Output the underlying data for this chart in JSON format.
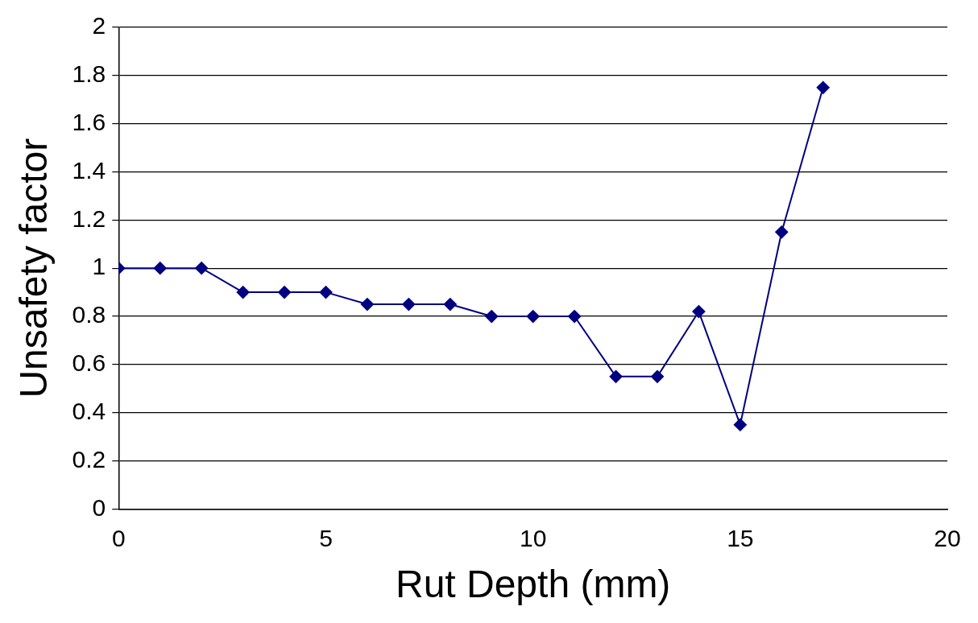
{
  "chart_data": {
    "type": "line",
    "xlabel": "Rut Depth (mm)",
    "ylabel": "Unsafety factor",
    "x": [
      0,
      1,
      2,
      3,
      4,
      5,
      6,
      7,
      8,
      9,
      10,
      11,
      12,
      13,
      14,
      15,
      16,
      17
    ],
    "series": [
      {
        "color": "#000080",
        "values": [
          1,
          1,
          1,
          0.9,
          0.9,
          0.9,
          0.85,
          0.85,
          0.85,
          0.8,
          0.8,
          0.8,
          0.55,
          0.55,
          0.82,
          0.35,
          1.15,
          1.75
        ]
      }
    ],
    "xlim": [
      0,
      20
    ],
    "xticks": [
      0,
      5,
      10,
      15,
      20
    ],
    "ylim": [
      0,
      2
    ],
    "yticks": [
      0,
      0.2,
      0.4,
      0.6,
      0.8,
      1,
      1.2,
      1.4,
      1.6,
      1.8,
      2
    ],
    "grid": "y",
    "legend": false,
    "marker": "diamond",
    "line_style": "solid"
  }
}
